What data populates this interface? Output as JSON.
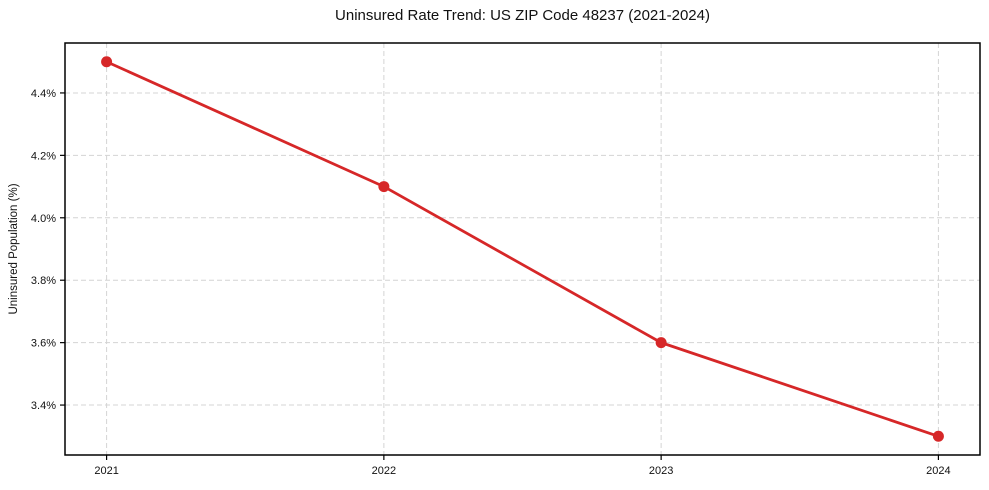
{
  "chart_data": {
    "type": "line",
    "title": "Uninsured Rate Trend: US ZIP Code 48237 (2021-2024)",
    "xlabel": "",
    "ylabel": "Uninsured Population (%)",
    "x": [
      2021,
      2022,
      2023,
      2024
    ],
    "values": [
      4.5,
      4.1,
      3.6,
      3.3
    ],
    "x_ticks": [
      2021,
      2022,
      2023,
      2024
    ],
    "x_tick_labels": [
      "2021",
      "2022",
      "2023",
      "2024"
    ],
    "y_ticks": [
      3.4,
      3.6,
      3.8,
      4.0,
      4.2,
      4.4
    ],
    "y_tick_labels": [
      "3.4%",
      "3.6%",
      "3.8%",
      "4.0%",
      "4.2%",
      "4.4%"
    ],
    "xlim": [
      2020.85,
      2024.15
    ],
    "ylim": [
      3.24,
      4.56
    ],
    "grid": true,
    "grid_style": "dashed",
    "legend": false,
    "line_color": "#d62728",
    "marker": "circle",
    "frame_color": "#000000",
    "grid_color": "#d4d4d4",
    "background_color": "#ffffff"
  }
}
